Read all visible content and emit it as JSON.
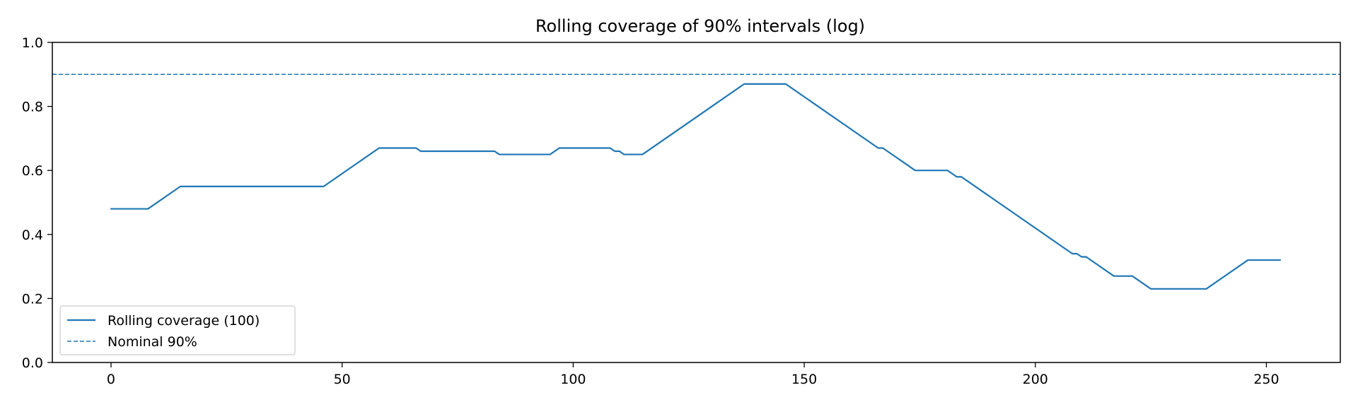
{
  "chart_data": {
    "type": "line",
    "title": "Rolling coverage of 90% intervals (log)",
    "xlabel": "",
    "ylabel": "",
    "xlim": [
      -12.7,
      266
    ],
    "ylim": [
      0,
      1.0
    ],
    "x_ticks": [
      0,
      50,
      100,
      150,
      200,
      250
    ],
    "y_ticks": [
      0.0,
      0.2,
      0.4,
      0.6,
      0.8,
      1.0
    ],
    "x_tick_labels": [
      "0",
      "50",
      "100",
      "150",
      "200",
      "250"
    ],
    "y_tick_labels": [
      "0.0",
      "0.2",
      "0.4",
      "0.6",
      "0.8",
      "1.0"
    ],
    "grid": false,
    "legend_position": "lower-left",
    "series": [
      {
        "name": "Rolling coverage (100)",
        "style": "solid",
        "color": "#1f77b4",
        "x": [
          0,
          8,
          15,
          46,
          58,
          66,
          67,
          83,
          84,
          95,
          97,
          108,
          109,
          110,
          111,
          115,
          137,
          146,
          166,
          167,
          174,
          181,
          183,
          184,
          208,
          209,
          210,
          211,
          217,
          221,
          225,
          237,
          246,
          253
        ],
        "y": [
          0.48,
          0.48,
          0.55,
          0.55,
          0.67,
          0.67,
          0.66,
          0.66,
          0.65,
          0.65,
          0.67,
          0.67,
          0.66,
          0.66,
          0.65,
          0.65,
          0.87,
          0.87,
          0.67,
          0.67,
          0.6,
          0.6,
          0.58,
          0.58,
          0.34,
          0.34,
          0.33,
          0.33,
          0.27,
          0.27,
          0.23,
          0.23,
          0.32,
          0.32
        ]
      },
      {
        "name": "Nominal 90%",
        "style": "dashed",
        "color": "#1f77b4",
        "hline": 0.9
      }
    ]
  }
}
